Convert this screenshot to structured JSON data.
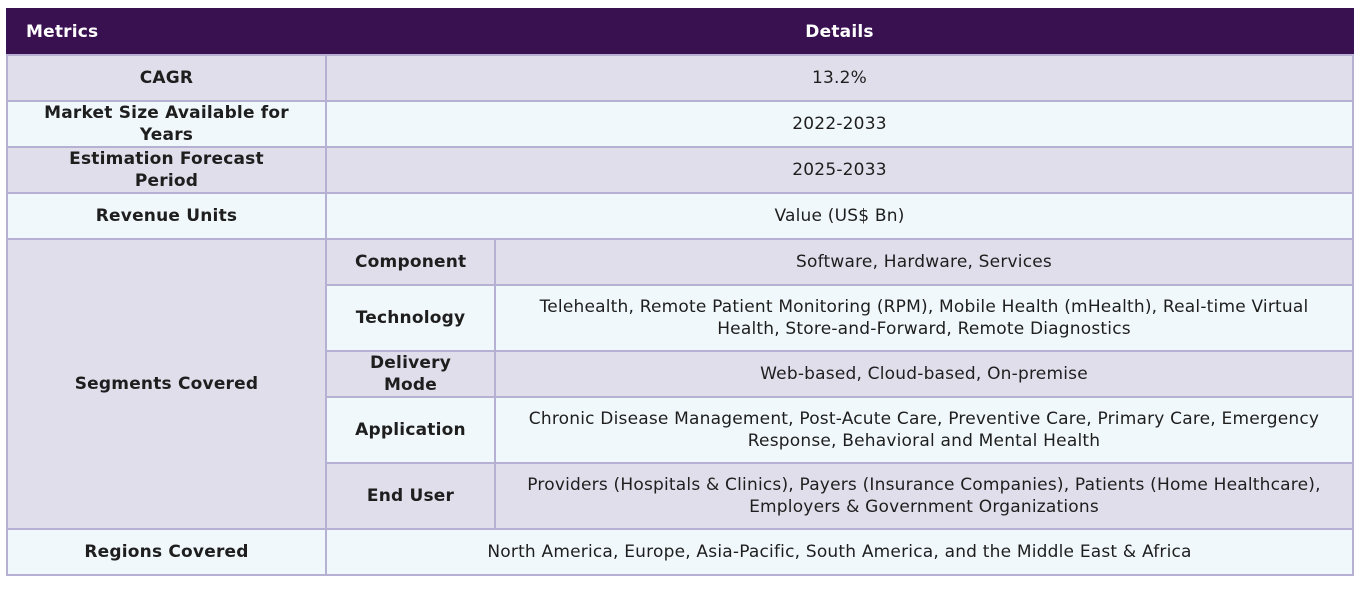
{
  "header": {
    "metrics_label": "Metrics",
    "details_label": "Details"
  },
  "rows": [
    {
      "metric": "CAGR",
      "details": "13.2%"
    },
    {
      "metric": "Market Size Available for Years",
      "details": "2022-2033"
    },
    {
      "metric": "Estimation Forecast Period",
      "details": "2025-2033"
    },
    {
      "metric": "Revenue Units",
      "details": "Value (US$ Bn)"
    }
  ],
  "segments": {
    "label": "Segments Covered",
    "items": [
      {
        "name": "Component",
        "details": "Software, Hardware, Services"
      },
      {
        "name": "Technology",
        "details": "Telehealth, Remote Patient Monitoring (RPM), Mobile Health (mHealth), Real-time Virtual Health, Store-and-Forward, Remote Diagnostics"
      },
      {
        "name": "Delivery Mode",
        "details": "Web-based, Cloud-based, On-premise"
      },
      {
        "name": "Application",
        "details": "Chronic Disease Management, Post-Acute Care, Preventive Care, Primary Care, Emergency Response, Behavioral and Mental Health"
      },
      {
        "name": "End User",
        "details": "Providers (Hospitals & Clinics), Payers (Insurance Companies), Patients (Home Healthcare), Employers & Government Organizations"
      }
    ]
  },
  "regions": {
    "metric": "Regions Covered",
    "details": "North America, Europe, Asia-Pacific, South America, and the Middle East & Africa"
  }
}
